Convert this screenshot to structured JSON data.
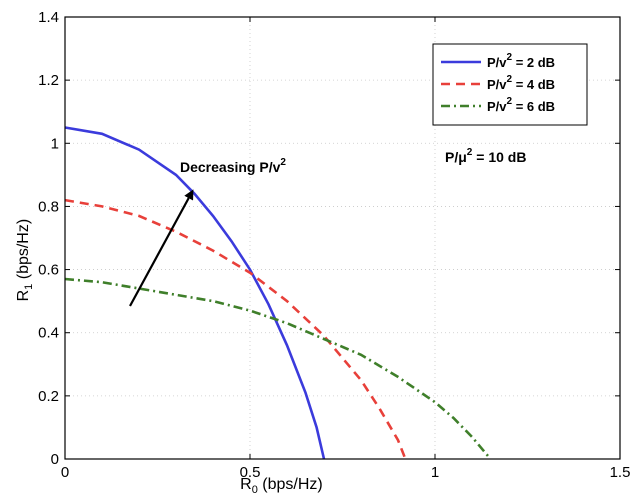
{
  "chart_data": {
    "type": "line",
    "title": "",
    "xlabel": {
      "main": "R",
      "sub": "0",
      "rest": " (bps/Hz)"
    },
    "ylabel": {
      "main": "R",
      "sub": "1",
      "rest": " (bps/Hz)"
    },
    "xlim": [
      0,
      1.5
    ],
    "ylim": [
      0,
      1.4
    ],
    "xticks": [
      0,
      0.5,
      1,
      1.5
    ],
    "xtick_labels": [
      "0",
      "0.5",
      "1",
      "1.5"
    ],
    "yticks": [
      0,
      0.2,
      0.4,
      0.6,
      0.8,
      1.0,
      1.2,
      1.4
    ],
    "ytick_labels": [
      "0",
      "0.2",
      "0.4",
      "0.6",
      "0.8",
      "1",
      "1.2",
      "1.4"
    ],
    "grid": true,
    "legend_position": "top-right",
    "series": [
      {
        "name": {
          "pre": "P/v",
          "sup": "2",
          "post": " = 2 dB"
        },
        "color": "#3b3bdc",
        "style": "solid",
        "x": [
          0,
          0.1,
          0.2,
          0.3,
          0.35,
          0.4,
          0.45,
          0.5,
          0.55,
          0.6,
          0.65,
          0.68,
          0.7
        ],
        "y": [
          1.05,
          1.03,
          0.98,
          0.9,
          0.84,
          0.77,
          0.69,
          0.6,
          0.49,
          0.36,
          0.21,
          0.1,
          0
        ]
      },
      {
        "name": {
          "pre": "P/v",
          "sup": "2",
          "post": " = 4 dB"
        },
        "color": "#e8403a",
        "style": "dashed",
        "x": [
          0,
          0.1,
          0.2,
          0.3,
          0.4,
          0.5,
          0.6,
          0.7,
          0.8,
          0.85,
          0.9,
          0.92
        ],
        "y": [
          0.82,
          0.8,
          0.77,
          0.72,
          0.66,
          0.59,
          0.5,
          0.39,
          0.25,
          0.16,
          0.06,
          0
        ]
      },
      {
        "name": {
          "pre": "P/v",
          "sup": "2",
          "post": " = 6 dB"
        },
        "color": "#3f7f2a",
        "style": "dashdot",
        "x": [
          0,
          0.1,
          0.2,
          0.3,
          0.4,
          0.5,
          0.6,
          0.7,
          0.8,
          0.9,
          1.0,
          1.05,
          1.1,
          1.15
        ],
        "y": [
          0.57,
          0.56,
          0.54,
          0.52,
          0.5,
          0.47,
          0.43,
          0.38,
          0.33,
          0.26,
          0.18,
          0.13,
          0.07,
          0
        ]
      }
    ],
    "annotations": {
      "constant": {
        "pre": "P/μ",
        "sup": "2",
        "post": " = 10 dB"
      },
      "arrow_label": {
        "pre": "Decreasing P/v",
        "sup": "2"
      }
    }
  }
}
